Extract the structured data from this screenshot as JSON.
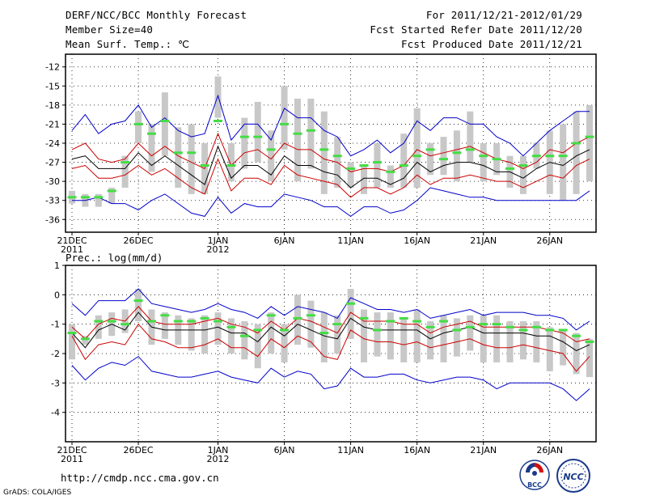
{
  "header": {
    "title": "DERF/NCC/BCC Monthly Forecast",
    "member_size": "Member Size=40",
    "variable_label": "Mean Surf. Temp.: ℃",
    "for_range": "For 2011/12/21-2012/01/29",
    "fcst_started": "Fcst Started Refer Date 2011/12/20",
    "fcst_produced": "Fcst Produced Date 2011/12/21"
  },
  "footer": {
    "url": "http://cmdp.ncc.cma.gov.cn",
    "credit": "GrADS: COLA/IGES",
    "logo_left_text": "BCC",
    "logo_right_text": "NCC"
  },
  "chart_data": [
    {
      "type": "line",
      "title": "Mean Surf. Temp.: ℃",
      "ylim": [
        -38,
        -10
      ],
      "yticks": [
        -12,
        -15,
        -18,
        -21,
        -24,
        -27,
        -30,
        -33,
        -36
      ],
      "ytick_labels": [
        "-12",
        "-15",
        "-18",
        "-21",
        "-24",
        "-27",
        "-30",
        "-33",
        "-36"
      ],
      "xticks": [
        {
          "day": 0,
          "label": "21DEC",
          "sublabel": "2011"
        },
        {
          "day": 5,
          "label": "26DEC",
          "sublabel": ""
        },
        {
          "day": 11,
          "label": "1JAN",
          "sublabel": "2012"
        },
        {
          "day": 16,
          "label": "6JAN",
          "sublabel": ""
        },
        {
          "day": 21,
          "label": "11JAN",
          "sublabel": ""
        },
        {
          "day": 26,
          "label": "16JAN",
          "sublabel": ""
        },
        {
          "day": 31,
          "label": "21JAN",
          "sublabel": ""
        },
        {
          "day": 36,
          "label": "26JAN",
          "sublabel": ""
        }
      ],
      "grid": true,
      "days": 40,
      "series": [
        {
          "name": "max",
          "color": "#0000cc",
          "values": [
            -22,
            -19.5,
            -22.5,
            -21,
            -20.5,
            -18,
            -21.5,
            -20,
            -22,
            -23,
            -22.5,
            -16.5,
            -23.5,
            -21,
            -21,
            -23.5,
            -18.5,
            -20,
            -20,
            -22,
            -23,
            -26,
            -25,
            -23.5,
            -25.5,
            -24,
            -20.5,
            -22,
            -20,
            -20,
            -21,
            -21,
            -23,
            -24,
            -26,
            -24,
            -22,
            -20.5,
            -19,
            -19
          ]
        },
        {
          "name": "upper",
          "color": "#cc0000",
          "values": [
            -25,
            -24,
            -26.5,
            -27,
            -26.5,
            -24,
            -26,
            -24.5,
            -26,
            -27,
            -28,
            -22.5,
            -27.5,
            -25.5,
            -25,
            -26.5,
            -24,
            -25,
            -25,
            -26.5,
            -27,
            -28.5,
            -28,
            -28,
            -28.5,
            -27.5,
            -25,
            -26,
            -25.5,
            -25,
            -24.5,
            -25.5,
            -26.5,
            -27,
            -28,
            -27,
            -25,
            -25.5,
            -24,
            -23
          ]
        },
        {
          "name": "mean",
          "color": "#000000",
          "values": [
            -26.5,
            -26,
            -28,
            -28,
            -28,
            -25.5,
            -27.5,
            -26,
            -27.5,
            -29,
            -30.5,
            -24.5,
            -29.5,
            -27.5,
            -27.5,
            -29,
            -26,
            -27.5,
            -27.5,
            -28.5,
            -29,
            -31,
            -29.5,
            -29.5,
            -30.5,
            -29.5,
            -27,
            -28.5,
            -27.5,
            -27,
            -27,
            -27.5,
            -28.5,
            -28.5,
            -29.5,
            -28,
            -27,
            -27.5,
            -26,
            -25
          ]
        },
        {
          "name": "lower",
          "color": "#cc0000",
          "values": [
            -28,
            -27.5,
            -29.5,
            -29.5,
            -29,
            -27.5,
            -29,
            -28,
            -29.5,
            -31,
            -32,
            -26.5,
            -31.5,
            -29.5,
            -29.5,
            -30.5,
            -27.5,
            -29,
            -29.5,
            -30,
            -30.5,
            -32.5,
            -31,
            -31,
            -32,
            -31,
            -29,
            -30.5,
            -29.5,
            -29.5,
            -29,
            -29.5,
            -30,
            -30,
            -31,
            -30,
            -29,
            -29.5,
            -27.5,
            -26.5
          ]
        },
        {
          "name": "min",
          "color": "#0000cc",
          "values": [
            -33,
            -33,
            -32.5,
            -33.5,
            -33.5,
            -34.5,
            -33,
            -32,
            -33.5,
            -35,
            -35.5,
            -32.5,
            -35,
            -33.5,
            -34,
            -34,
            -32,
            -32.5,
            -33,
            -34,
            -34,
            -35.5,
            -34,
            -34,
            -35,
            -34.5,
            -33,
            -31,
            -31.5,
            -32,
            -32.5,
            -32.5,
            -33,
            -33,
            -33,
            -33,
            -33,
            -33,
            -33,
            -31.5
          ]
        }
      ],
      "box_low": [
        -33.5,
        -34,
        -34,
        -33.5,
        -31,
        -24,
        -28.5,
        -26,
        -31,
        -32,
        -32,
        -20,
        -30,
        -28,
        -27,
        -30,
        -25,
        -30,
        -28,
        -32,
        -31,
        -31,
        -32,
        -31,
        -31,
        -31,
        -31,
        -29,
        -29,
        -30,
        -27,
        -30,
        -29,
        -31,
        -32,
        -28,
        -32,
        -33,
        -32,
        -30
      ],
      "box_high": [
        -31.5,
        -32,
        -32,
        -31,
        -26,
        -19,
        -21,
        -16,
        -21.5,
        -21,
        -24,
        -13.5,
        -24,
        -20,
        -17.5,
        -22,
        -15,
        -17,
        -17,
        -19,
        -23,
        -27,
        -27.5,
        -24,
        -27.5,
        -22.5,
        -18.5,
        -24,
        -23,
        -22,
        -19,
        -24,
        -24,
        -26,
        -26,
        -24,
        -22,
        -21,
        -19,
        -18
      ],
      "observed_marks": [
        -32.5,
        -32.5,
        -32.5,
        -31.5,
        -27,
        -21,
        -22.5,
        -20.5,
        -25.5,
        -25.5,
        -27.5,
        -20.5,
        -27.5,
        -23,
        -23,
        -25,
        -21,
        -22.5,
        -22,
        -25,
        -26,
        -28,
        -27.5,
        -27,
        -28.5,
        -27.5,
        -26,
        -25,
        -26.5,
        -25.5,
        -25,
        -26,
        -26.5,
        -28,
        -27.5,
        -26,
        -26,
        -26,
        -24,
        -23
      ]
    },
    {
      "type": "line",
      "title": "Prec.: log(mm/d)",
      "ylim": [
        -5,
        1
      ],
      "yticks": [
        1,
        0,
        -1,
        -2,
        -3,
        -4
      ],
      "ytick_labels": [
        "1",
        "0",
        "-1",
        "-2",
        "-3",
        "-4"
      ],
      "xticks": [
        {
          "day": 0,
          "label": "21DEC",
          "sublabel": "2011"
        },
        {
          "day": 5,
          "label": "26DEC",
          "sublabel": ""
        },
        {
          "day": 11,
          "label": "1JAN",
          "sublabel": "2012"
        },
        {
          "day": 16,
          "label": "6JAN",
          "sublabel": ""
        },
        {
          "day": 21,
          "label": "11JAN",
          "sublabel": ""
        },
        {
          "day": 26,
          "label": "16JAN",
          "sublabel": ""
        },
        {
          "day": 31,
          "label": "21JAN",
          "sublabel": ""
        },
        {
          "day": 36,
          "label": "26JAN",
          "sublabel": ""
        }
      ],
      "grid": true,
      "days": 40,
      "series": [
        {
          "name": "max",
          "color": "#0000cc",
          "values": [
            -0.3,
            -0.7,
            -0.2,
            -0.2,
            -0.2,
            0.2,
            -0.3,
            -0.4,
            -0.5,
            -0.6,
            -0.5,
            -0.3,
            -0.5,
            -0.6,
            -0.8,
            -0.4,
            -0.7,
            -0.4,
            -0.5,
            -0.6,
            -0.8,
            -0.1,
            -0.3,
            -0.5,
            -0.5,
            -0.6,
            -0.5,
            -0.8,
            -0.7,
            -0.6,
            -0.5,
            -0.7,
            -0.6,
            -0.6,
            -0.6,
            -0.7,
            -0.7,
            -0.8,
            -1.2,
            -0.9
          ]
        },
        {
          "name": "upper",
          "color": "#cc0000",
          "values": [
            -1.1,
            -1.5,
            -1,
            -0.8,
            -0.9,
            -0.4,
            -0.9,
            -1,
            -1,
            -1,
            -0.9,
            -0.8,
            -1,
            -1.1,
            -1.3,
            -0.9,
            -1.2,
            -0.8,
            -0.9,
            -1.1,
            -1.3,
            -0.6,
            -0.9,
            -0.9,
            -0.9,
            -1,
            -1,
            -1.3,
            -1.1,
            -1,
            -0.9,
            -1.1,
            -1.1,
            -1.1,
            -1.1,
            -1.1,
            -1.2,
            -1.3,
            -1.6,
            -1.5
          ]
        },
        {
          "name": "mean",
          "color": "#000000",
          "values": [
            -1.3,
            -1.8,
            -1.2,
            -1,
            -1.2,
            -0.6,
            -1.1,
            -1.2,
            -1.2,
            -1.2,
            -1.2,
            -1.1,
            -1.3,
            -1.3,
            -1.6,
            -1.1,
            -1.4,
            -1,
            -1.2,
            -1.4,
            -1.5,
            -0.8,
            -1.1,
            -1.2,
            -1.2,
            -1.2,
            -1.2,
            -1.5,
            -1.3,
            -1.2,
            -1.1,
            -1.3,
            -1.3,
            -1.3,
            -1.3,
            -1.4,
            -1.4,
            -1.6,
            -1.9,
            -1.7
          ]
        },
        {
          "name": "lower",
          "color": "#cc0000",
          "values": [
            -1.4,
            -2.2,
            -1.7,
            -1.6,
            -1.7,
            -1,
            -1.5,
            -1.6,
            -1.8,
            -1.8,
            -1.7,
            -1.5,
            -1.8,
            -1.8,
            -2.1,
            -1.5,
            -1.8,
            -1.4,
            -1.6,
            -2.1,
            -2.2,
            -1.2,
            -1.5,
            -1.6,
            -1.6,
            -1.7,
            -1.6,
            -1.8,
            -1.7,
            -1.6,
            -1.5,
            -1.7,
            -1.8,
            -1.8,
            -1.7,
            -1.8,
            -1.9,
            -2,
            -2.6,
            -2.1
          ]
        },
        {
          "name": "min",
          "color": "#0000cc",
          "values": [
            -2.4,
            -2.9,
            -2.5,
            -2.3,
            -2.4,
            -2.1,
            -2.6,
            -2.7,
            -2.8,
            -2.8,
            -2.7,
            -2.6,
            -2.8,
            -2.9,
            -3,
            -2.5,
            -2.8,
            -2.6,
            -2.7,
            -3.2,
            -3.1,
            -2.5,
            -2.8,
            -2.8,
            -2.7,
            -2.7,
            -2.9,
            -3,
            -2.9,
            -2.8,
            -2.8,
            -2.9,
            -3.2,
            -3,
            -3,
            -3,
            -3,
            -3.2,
            -3.6,
            -3.2
          ]
        }
      ],
      "box_low": [
        -2.2,
        -1.7,
        -1.5,
        -1.4,
        -1.3,
        -0.9,
        -1.7,
        -1.5,
        -1.7,
        -1.9,
        -2,
        -1.7,
        -2,
        -2.2,
        -2.5,
        -2,
        -2.3,
        -1.7,
        -1.8,
        -2.3,
        -2,
        -1.5,
        -2.3,
        -2.1,
        -2.2,
        -2.3,
        -2.3,
        -2.2,
        -2.3,
        -2.1,
        -1.9,
        -2.3,
        -2.3,
        -2.3,
        -2.2,
        -2.3,
        -2.6,
        -2.4,
        -2.7,
        -2.8
      ],
      "box_high": [
        -1,
        -1.4,
        -0.7,
        -0.6,
        -0.5,
        0.2,
        -0.5,
        -0.6,
        -0.7,
        -0.8,
        -0.7,
        -0.6,
        -0.8,
        -0.9,
        -1,
        -0.6,
        -1,
        0,
        -0.2,
        -0.6,
        -0.7,
        0.2,
        -0.5,
        -0.6,
        -0.6,
        -0.8,
        -0.5,
        -0.9,
        -0.7,
        -0.8,
        -0.7,
        -0.7,
        -0.7,
        -0.9,
        -0.9,
        -0.9,
        -1.1,
        -1.2,
        -1.3,
        -1.5
      ],
      "observed_marks": [
        -1.3,
        -1.5,
        -0.9,
        -0.9,
        -1,
        -0.2,
        -0.9,
        -0.7,
        -0.9,
        -0.9,
        -0.8,
        -0.9,
        -1.1,
        -1.4,
        -1.2,
        -0.7,
        -1.2,
        -0.8,
        -0.7,
        -1.3,
        -1,
        -0.3,
        -0.8,
        -1.2,
        -0.9,
        -0.8,
        -0.9,
        -1.1,
        -0.9,
        -1.2,
        -1.1,
        -1,
        -1,
        -1.1,
        -1.2,
        -1.1,
        -1.2,
        -1.2,
        -1.4,
        -1.6
      ]
    }
  ]
}
